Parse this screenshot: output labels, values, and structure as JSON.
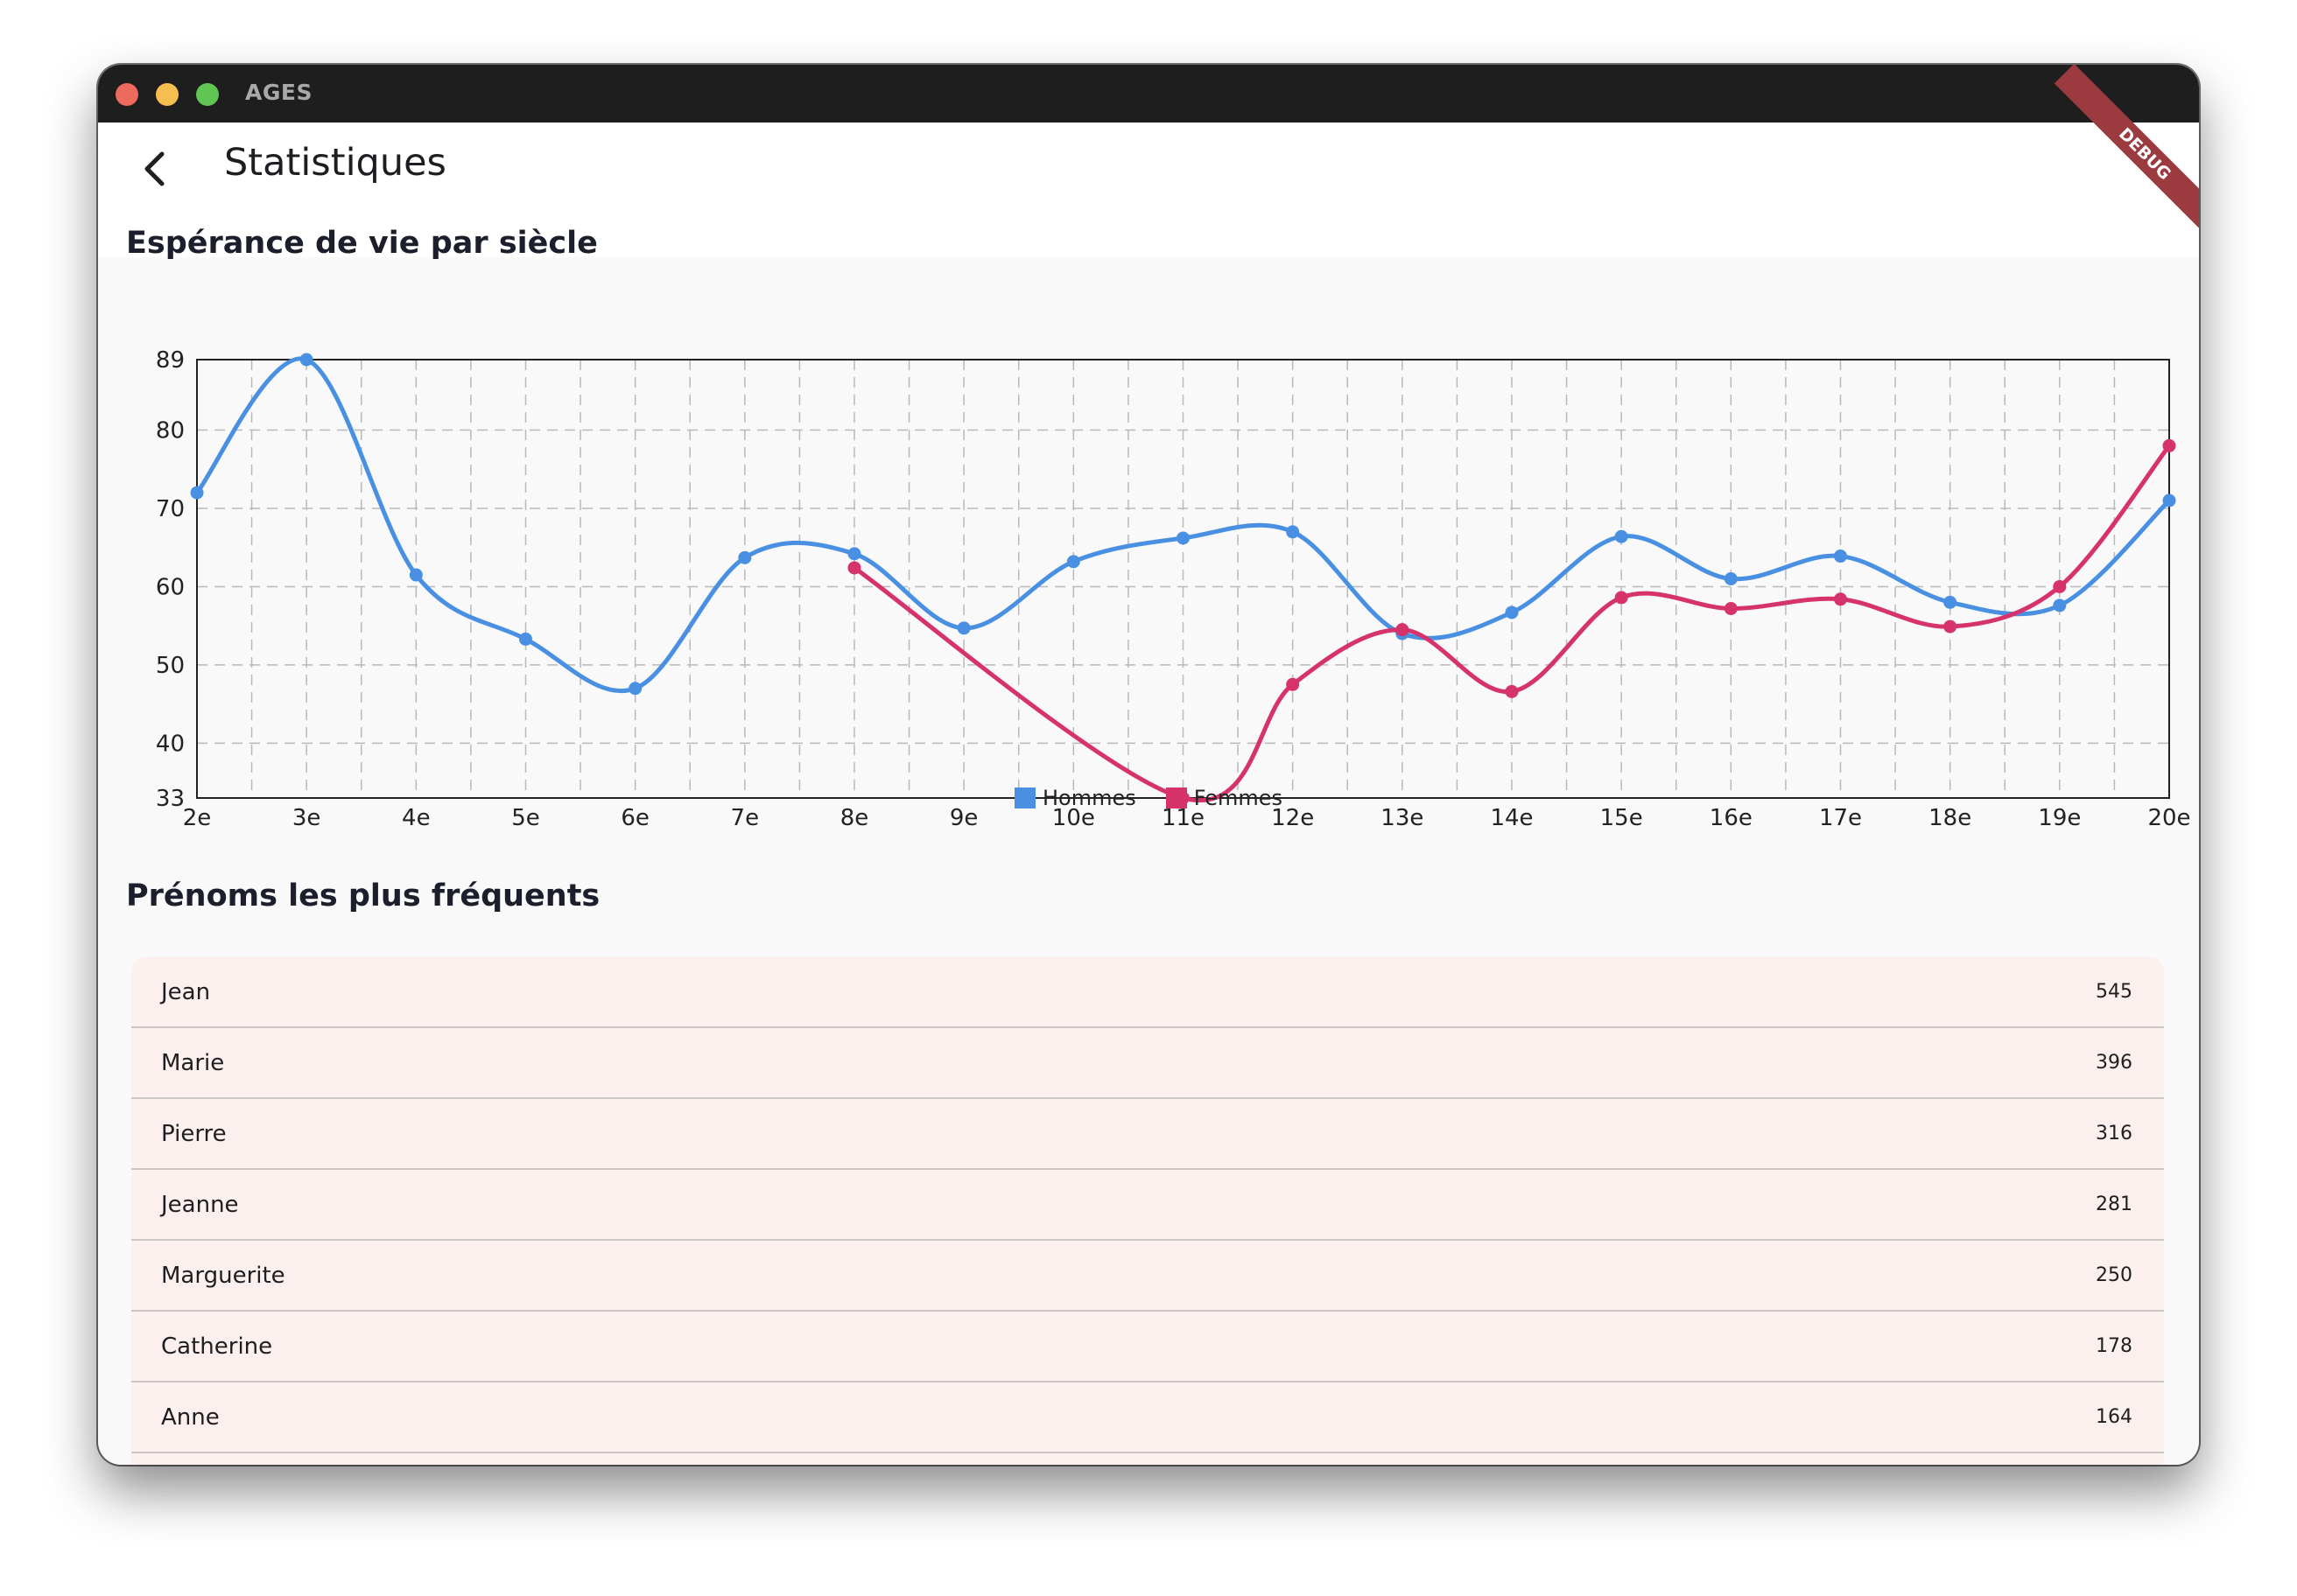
{
  "window": {
    "title": "AGES"
  },
  "appbar": {
    "title": "Statistiques",
    "debug_label": "DEBUG"
  },
  "sections": {
    "life_expectancy": "Espérance de vie par siècle",
    "names": "Prénoms les plus fréquents"
  },
  "colors": {
    "hommes": "#4a90e2",
    "femmes": "#d6336c"
  },
  "chart_data": {
    "type": "line",
    "title": "Espérance de vie par siècle",
    "categories": [
      "2e",
      "3e",
      "4e",
      "5e",
      "6e",
      "7e",
      "8e",
      "9e",
      "10e",
      "11e",
      "12e",
      "13e",
      "14e",
      "15e",
      "16e",
      "17e",
      "18e",
      "19e",
      "20e"
    ],
    "y_ticks": [
      33,
      40,
      50,
      60,
      70,
      80,
      89
    ],
    "ylim": [
      33,
      89
    ],
    "grid": true,
    "legend_position": "bottom",
    "series": [
      {
        "name": "Hommes",
        "color": "#4a90e2",
        "values": [
          72,
          89,
          61.5,
          53.3,
          47,
          63.7,
          64.2,
          54.7,
          63.2,
          66.2,
          67,
          54,
          56.7,
          66.4,
          61,
          63.9,
          58,
          57.6,
          71
        ]
      },
      {
        "name": "Femmes",
        "color": "#d6336c",
        "values": [
          null,
          null,
          null,
          null,
          null,
          null,
          62.4,
          null,
          null,
          33,
          47.5,
          54.5,
          46.6,
          58.6,
          57.2,
          58.4,
          54.9,
          60,
          78
        ]
      }
    ]
  },
  "names_list": [
    {
      "name": "Jean",
      "count": "545"
    },
    {
      "name": "Marie",
      "count": "396"
    },
    {
      "name": "Pierre",
      "count": "316"
    },
    {
      "name": "Jeanne",
      "count": "281"
    },
    {
      "name": "Marguerite",
      "count": "250"
    },
    {
      "name": "Catherine",
      "count": "178"
    },
    {
      "name": "Anne",
      "count": "164"
    }
  ]
}
